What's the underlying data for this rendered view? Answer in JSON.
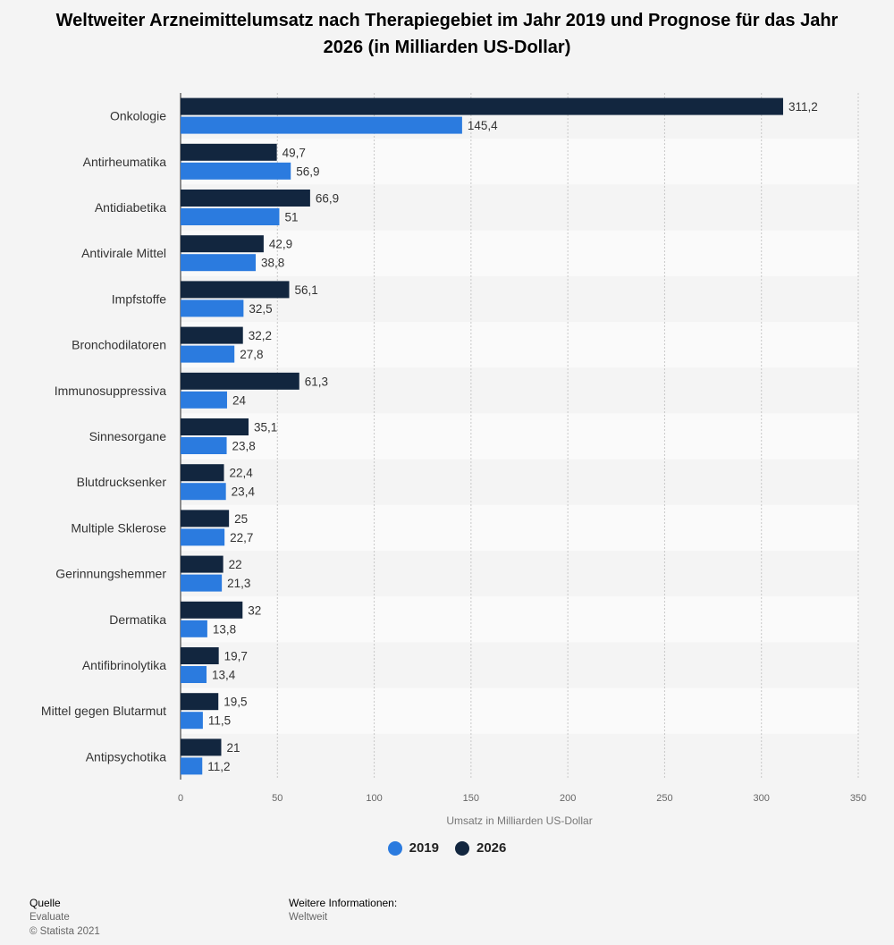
{
  "title": "Weltweiter Arzneimittelumsatz nach Therapiegebiet im Jahr 2019 und Prognose für das Jahr 2026 (in Milliarden US-Dollar)",
  "colors": {
    "series_2019": "#2b7bdf",
    "series_2026": "#12263f"
  },
  "chart_data": {
    "type": "bar",
    "orientation": "horizontal",
    "categories": [
      "Onkologie",
      "Antirheumatika",
      "Antidiabetika",
      "Antivirale Mittel",
      "Impfstoffe",
      "Bronchodilatoren",
      "Immunosuppressiva",
      "Sinnesorgane",
      "Blutdrucksenker",
      "Multiple Sklerose",
      "Gerinnungshemmer",
      "Dermatika",
      "Antifibrinolytika",
      "Mittel gegen Blutarmut",
      "Antipsychotika"
    ],
    "series": [
      {
        "name": "2026",
        "color": "#12263f",
        "values": [
          311.2,
          49.7,
          66.9,
          42.9,
          56.1,
          32.2,
          61.3,
          35.1,
          22.4,
          25,
          22,
          32,
          19.7,
          19.5,
          21
        ],
        "labels": [
          "311,2",
          "49,7",
          "66,9",
          "42,9",
          "56,1",
          "32,2",
          "61,3",
          "35,1",
          "22,4",
          "25",
          "22",
          "32",
          "19,7",
          "19,5",
          "21"
        ]
      },
      {
        "name": "2019",
        "color": "#2b7bdf",
        "values": [
          145.4,
          56.9,
          51,
          38.8,
          32.5,
          27.8,
          24,
          23.8,
          23.4,
          22.7,
          21.3,
          13.8,
          13.4,
          11.5,
          11.2
        ],
        "labels": [
          "145,4",
          "56,9",
          "51",
          "38,8",
          "32,5",
          "27,8",
          "24",
          "23,8",
          "23,4",
          "22,7",
          "21,3",
          "13,8",
          "13,4",
          "11,5",
          "11,2"
        ]
      }
    ],
    "xlabel": "Umsatz in Milliarden US-Dollar",
    "ylabel": "",
    "xlim": [
      0,
      350
    ],
    "xticks": [
      0,
      50,
      100,
      150,
      200,
      250,
      300,
      350
    ],
    "grid": true,
    "legend_position": "bottom"
  },
  "legend": [
    {
      "label": "2019",
      "color": "#2b7bdf"
    },
    {
      "label": "2026",
      "color": "#12263f"
    }
  ],
  "footer": {
    "source_heading": "Quelle",
    "source_name": "Evaluate",
    "copyright": "© Statista 2021",
    "info_heading": "Weitere Informationen:",
    "info_text": "Weltweit"
  }
}
